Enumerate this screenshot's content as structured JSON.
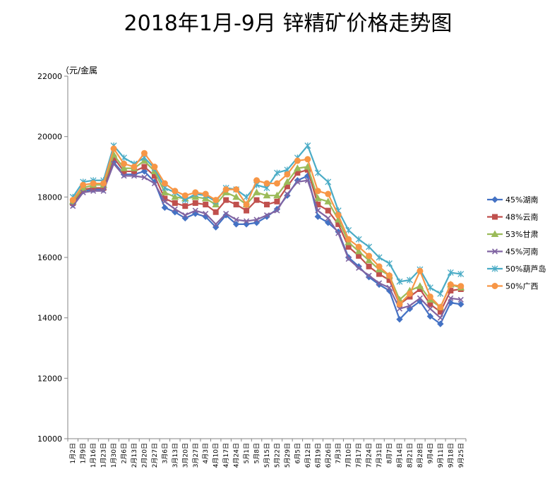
{
  "chart_data": {
    "type": "line",
    "title": "2018年1月-9月 锌精矿价格走势图",
    "unit_label": "（元/金属",
    "ylim": [
      10000,
      22000
    ],
    "yticks": [
      "10000",
      "12000",
      "14000",
      "16000",
      "18000",
      "20000",
      "22000"
    ],
    "grid": false,
    "legend_position": "right",
    "x": [
      "1月2日",
      "1月9日",
      "1月16日",
      "1月23日",
      "1月30日",
      "2月6日",
      "2月13日",
      "2月20日",
      "2月27日",
      "3月6日",
      "3月13日",
      "3月20日",
      "3月27日",
      "4月3日",
      "4月10日",
      "4月17日",
      "4月24日",
      "5月1日",
      "5月8日",
      "5月15日",
      "5月22日",
      "5月29日",
      "6月5日",
      "6月12日",
      "6月19日",
      "6月26日",
      "7月3日",
      "7月10日",
      "7月17日",
      "7月24日",
      "7月31日",
      "8月7日",
      "8月14日",
      "8月21日",
      "8月28日",
      "9月4日",
      "9月11日",
      "9月18日",
      "9月25日"
    ],
    "series": [
      {
        "name": "45%湖南",
        "color": "#4472C4",
        "marker": "diamond",
        "values": [
          17750,
          18200,
          18250,
          18250,
          19150,
          18750,
          18750,
          18850,
          18500,
          17650,
          17500,
          17300,
          17450,
          17350,
          17000,
          17400,
          17100,
          17100,
          17150,
          17350,
          17600,
          18050,
          18550,
          18700,
          17350,
          17150,
          16850,
          16000,
          15700,
          15350,
          15100,
          14900,
          13950,
          14300,
          14550,
          14050,
          13800,
          14500,
          14450
        ]
      },
      {
        "name": "48%云南",
        "color": "#C0504D",
        "marker": "square",
        "values": [
          17800,
          18250,
          18300,
          18300,
          19300,
          18850,
          18850,
          19000,
          18700,
          17950,
          17800,
          17700,
          17800,
          17750,
          17500,
          17900,
          17750,
          17550,
          17900,
          17750,
          17850,
          18350,
          18800,
          18900,
          17750,
          17550,
          17100,
          16350,
          16050,
          15700,
          15450,
          15250,
          14450,
          14700,
          14950,
          14450,
          14200,
          14900,
          14950
        ]
      },
      {
        "name": "53%甘肃",
        "color": "#9BBB59",
        "marker": "triangle",
        "values": [
          17850,
          18300,
          18400,
          18400,
          19400,
          18950,
          18950,
          19200,
          18850,
          18150,
          18000,
          17950,
          18000,
          17950,
          17750,
          18150,
          18000,
          17750,
          18150,
          18050,
          18050,
          18500,
          18950,
          19000,
          17950,
          17850,
          17250,
          16500,
          16200,
          15900,
          15600,
          15400,
          14600,
          14900,
          15050,
          14600,
          14350,
          15100,
          15000
        ]
      },
      {
        "name": "45%河南",
        "color": "#8064A2",
        "marker": "x",
        "values": [
          17700,
          18150,
          18200,
          18200,
          19100,
          18700,
          18700,
          18650,
          18450,
          17850,
          17600,
          17400,
          17550,
          17450,
          17100,
          17450,
          17250,
          17200,
          17250,
          17400,
          17550,
          18100,
          18500,
          18550,
          17550,
          17300,
          16800,
          15950,
          15650,
          15400,
          15150,
          15000,
          14300,
          14400,
          14650,
          14300,
          14000,
          14650,
          14600
        ]
      },
      {
        "name": "50%葫芦岛",
        "color": "#4BACC6",
        "marker": "star",
        "values": [
          18000,
          18500,
          18550,
          18550,
          19700,
          19300,
          19100,
          19300,
          18950,
          18300,
          18150,
          17900,
          18100,
          18050,
          17850,
          18300,
          18250,
          18000,
          18400,
          18300,
          18800,
          18900,
          19300,
          19700,
          18800,
          18500,
          17550,
          16900,
          16600,
          16350,
          16000,
          15800,
          15200,
          15250,
          15600,
          15000,
          14800,
          15500,
          15450
        ]
      },
      {
        "name": "50%广西",
        "color": "#F79646",
        "marker": "circle",
        "values": [
          17900,
          18400,
          18450,
          18450,
          19600,
          19100,
          19000,
          19450,
          19000,
          18450,
          18200,
          18050,
          18150,
          18100,
          17900,
          18250,
          18250,
          17750,
          18550,
          18450,
          18450,
          18750,
          19200,
          19250,
          18200,
          18100,
          17400,
          16600,
          16350,
          16050,
          15700,
          15400,
          14450,
          14800,
          15550,
          14700,
          14350,
          15100,
          15050
        ]
      }
    ]
  }
}
